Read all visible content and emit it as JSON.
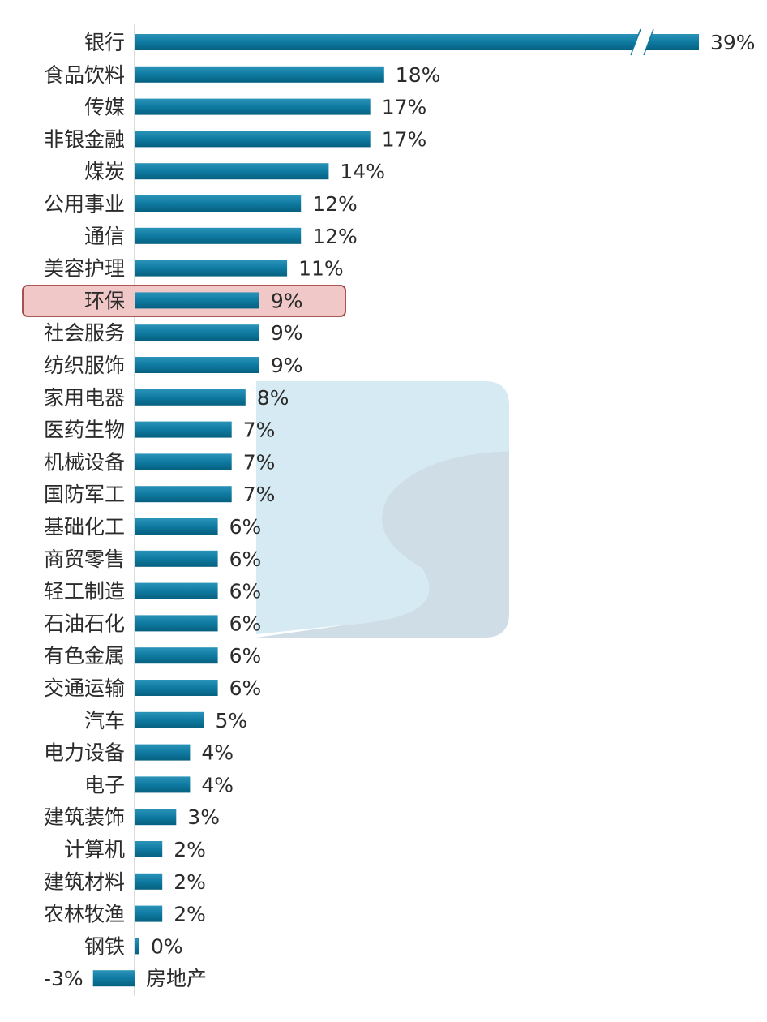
{
  "chart_data": {
    "type": "bar",
    "orientation": "horizontal",
    "categories": [
      "银行",
      "食品饮料",
      "传媒",
      "非银金融",
      "煤炭",
      "公用事业",
      "通信",
      "美容护理",
      "环保",
      "社会服务",
      "纺织服饰",
      "家用电器",
      "医药生物",
      "机械设备",
      "国防军工",
      "基础化工",
      "商贸零售",
      "轻工制造",
      "石油石化",
      "有色金属",
      "交通运输",
      "汽车",
      "电力设备",
      "电子",
      "建筑装饰",
      "计算机",
      "建筑材料",
      "农林牧渔",
      "钢铁",
      "房地产"
    ],
    "values": [
      39,
      18,
      17,
      17,
      14,
      12,
      12,
      11,
      9,
      9,
      9,
      8,
      7,
      7,
      7,
      6,
      6,
      6,
      6,
      6,
      6,
      5,
      4,
      4,
      3,
      2,
      2,
      2,
      0,
      -3
    ],
    "labels": [
      "39%",
      "18%",
      "17%",
      "17%",
      "14%",
      "12%",
      "12%",
      "11%",
      "9%",
      "9%",
      "9%",
      "8%",
      "7%",
      "7%",
      "7%",
      "6%",
      "6%",
      "6%",
      "6%",
      "6%",
      "6%",
      "5%",
      "4%",
      "4%",
      "3%",
      "2%",
      "2%",
      "2%",
      "0%",
      "-3%"
    ],
    "value_unit": "%",
    "highlighted_category": "环保",
    "axis_break_category": "银行",
    "bar_color": "#1479a0",
    "highlight_fill": "#f0c8c8",
    "highlight_stroke": "#a04040",
    "watermark_colors": [
      "#d3e8f1",
      "#cfdfe6"
    ]
  }
}
